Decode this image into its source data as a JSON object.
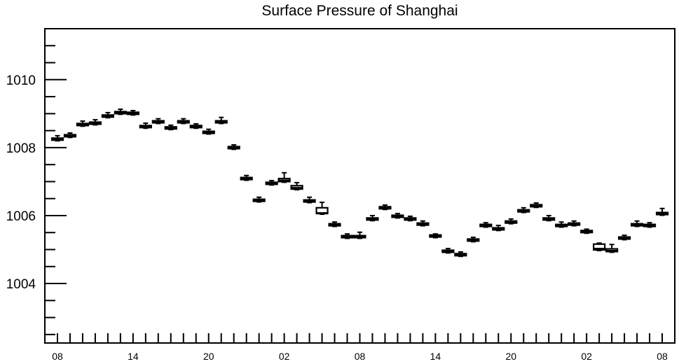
{
  "chart_data": {
    "type": "box",
    "title": "Surface Pressure of Shanghai",
    "ylim": [
      1002.25,
      1011.5
    ],
    "yticks": [
      1004,
      1006,
      1008,
      1010
    ],
    "yticklabels": [
      "1004",
      "1006",
      "1008",
      "1010"
    ],
    "y_minor_tick_step": 0.5,
    "xticklabels": [
      "08",
      "14",
      "20",
      "02",
      "08",
      "14",
      "20",
      "02",
      "08"
    ],
    "x": [
      8,
      9,
      10,
      11,
      12,
      13,
      14,
      15,
      16,
      17,
      18,
      19,
      20,
      21,
      22,
      23,
      0,
      1,
      2,
      3,
      4,
      5,
      6,
      7,
      8,
      9,
      10,
      11,
      12,
      13,
      14,
      15,
      16,
      17,
      18,
      19,
      20,
      21,
      22,
      23,
      0,
      1,
      2,
      3,
      4,
      5,
      6,
      7,
      8
    ],
    "median": [
      1008.25,
      1008.35,
      1008.68,
      1008.72,
      1008.93,
      1009.03,
      1009.01,
      1008.62,
      1008.76,
      1008.58,
      1008.76,
      1008.62,
      1008.45,
      1008.76,
      1008.0,
      1007.09,
      1006.45,
      1006.95,
      1007.04,
      1006.82,
      1006.43,
      1006.08,
      1005.73,
      1005.38,
      1005.38,
      1005.9,
      1006.23,
      1005.98,
      1005.9,
      1005.75,
      1005.4,
      1004.95,
      1004.85,
      1005.28,
      1005.71,
      1005.61,
      1005.81,
      1006.14,
      1006.29,
      1005.9,
      1005.71,
      1005.75,
      1005.53,
      1005.03,
      1004.97,
      1005.34,
      1005.73,
      1005.71,
      1006.06
    ],
    "q1": [
      1008.22,
      1008.32,
      1008.65,
      1008.69,
      1008.9,
      1009.0,
      1008.98,
      1008.59,
      1008.73,
      1008.55,
      1008.73,
      1008.59,
      1008.42,
      1008.73,
      1007.97,
      1007.06,
      1006.42,
      1006.92,
      1007.0,
      1006.78,
      1006.4,
      1006.06,
      1005.7,
      1005.35,
      1005.35,
      1005.87,
      1006.2,
      1005.95,
      1005.87,
      1005.72,
      1005.37,
      1004.92,
      1004.82,
      1005.25,
      1005.68,
      1005.58,
      1005.78,
      1006.11,
      1006.26,
      1005.87,
      1005.68,
      1005.72,
      1005.5,
      1004.99,
      1004.94,
      1005.31,
      1005.7,
      1005.68,
      1006.03
    ],
    "q3": [
      1008.28,
      1008.38,
      1008.71,
      1008.75,
      1008.96,
      1009.06,
      1009.04,
      1008.65,
      1008.79,
      1008.61,
      1008.79,
      1008.65,
      1008.48,
      1008.79,
      1008.03,
      1007.12,
      1006.48,
      1006.98,
      1007.09,
      1006.88,
      1006.46,
      1006.23,
      1005.76,
      1005.41,
      1005.41,
      1005.93,
      1006.26,
      1006.01,
      1005.93,
      1005.78,
      1005.43,
      1004.98,
      1004.88,
      1005.31,
      1005.74,
      1005.64,
      1005.84,
      1006.17,
      1006.32,
      1005.93,
      1005.74,
      1005.78,
      1005.56,
      1005.16,
      1005.02,
      1005.37,
      1005.76,
      1005.74,
      1006.09
    ],
    "min": [
      1008.2,
      1008.3,
      1008.63,
      1008.67,
      1008.88,
      1008.98,
      1008.96,
      1008.57,
      1008.71,
      1008.53,
      1008.71,
      1008.57,
      1008.4,
      1008.71,
      1007.95,
      1007.04,
      1006.4,
      1006.9,
      1006.98,
      1006.76,
      1006.38,
      1006.04,
      1005.68,
      1005.33,
      1005.33,
      1005.85,
      1006.18,
      1005.93,
      1005.85,
      1005.7,
      1005.35,
      1004.9,
      1004.8,
      1005.23,
      1005.66,
      1005.56,
      1005.76,
      1006.09,
      1006.24,
      1005.85,
      1005.66,
      1005.7,
      1005.48,
      1004.97,
      1004.92,
      1005.29,
      1005.68,
      1005.66,
      1006.01
    ],
    "max": [
      1008.35,
      1008.43,
      1008.78,
      1008.82,
      1009.03,
      1009.13,
      1009.09,
      1008.72,
      1008.85,
      1008.66,
      1008.85,
      1008.7,
      1008.54,
      1008.89,
      1008.08,
      1007.18,
      1006.54,
      1007.03,
      1007.26,
      1006.97,
      1006.54,
      1006.39,
      1005.81,
      1005.46,
      1005.51,
      1006.0,
      1006.31,
      1006.06,
      1005.98,
      1005.84,
      1005.46,
      1005.03,
      1004.93,
      1005.36,
      1005.79,
      1005.71,
      1005.9,
      1006.23,
      1006.37,
      1006.0,
      1005.81,
      1005.84,
      1005.6,
      1005.19,
      1005.15,
      1005.42,
      1005.84,
      1005.79,
      1006.21
    ],
    "grid": false,
    "legend": "none"
  },
  "colors": {
    "ink": "#000000",
    "box_fill": "#ffffff",
    "background": "#ffffff"
  }
}
